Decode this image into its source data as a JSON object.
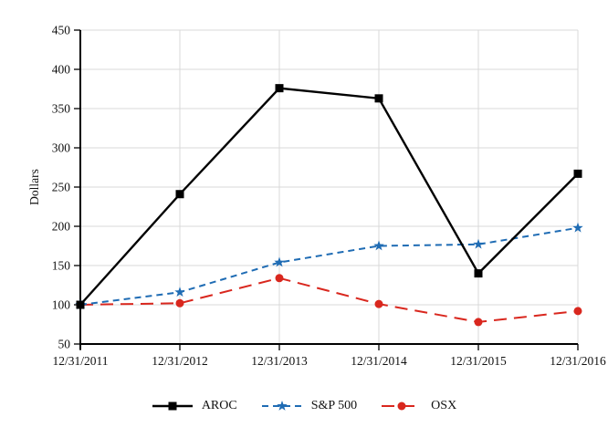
{
  "chart_data": {
    "type": "line",
    "title": "",
    "xlabel": "",
    "ylabel": "Dollars",
    "categories": [
      "12/31/2011",
      "12/31/2012",
      "12/31/2013",
      "12/31/2014",
      "12/31/2015",
      "12/31/2016"
    ],
    "series": [
      {
        "name": "AROC",
        "values": [
          100,
          241,
          376,
          363,
          140,
          267
        ],
        "color": "#000000",
        "marker": "square",
        "line_style": "solid",
        "stroke_width": 2.4
      },
      {
        "name": "S&P 500",
        "values": [
          100,
          116,
          154,
          175,
          177,
          198
        ],
        "color": "#1f6cb4",
        "marker": "star",
        "line_style": "dashed",
        "stroke_width": 2.0
      },
      {
        "name": "OSX",
        "values": [
          100,
          102,
          134,
          101,
          78,
          92
        ],
        "color": "#d9271e",
        "marker": "circle",
        "line_style": "long-dash",
        "stroke_width": 2.0
      }
    ],
    "ylim": [
      50,
      450
    ],
    "yticks": [
      50,
      100,
      150,
      200,
      250,
      300,
      350,
      400,
      450
    ],
    "grid": true,
    "legend_position": "bottom"
  },
  "colors": {
    "background": "#ffffff",
    "grid": "#d9d9d9",
    "axis": "#000000",
    "text": "#111111"
  }
}
